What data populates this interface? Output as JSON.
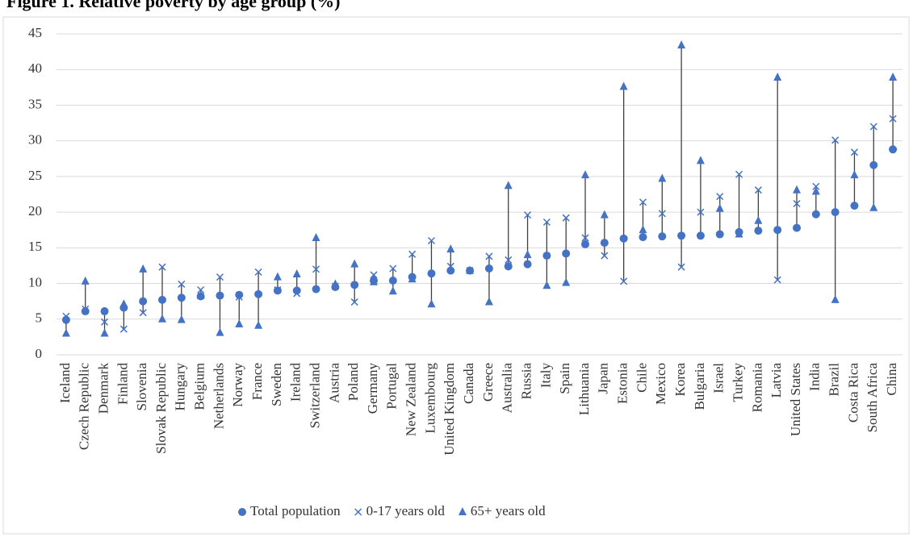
{
  "chart_data": {
    "type": "dot-range",
    "title": "Figure 1. Relative poverty by age group (%)",
    "categories": [
      "Iceland",
      "Czech Republic",
      "Denmark",
      "Finland",
      "Slovenia",
      "Slovak Republic",
      "Hungary",
      "Belgium",
      "Netherlands",
      "Norway",
      "France",
      "Sweden",
      "Ireland",
      "Switzerland",
      "Austria",
      "Poland",
      "Germany",
      "Portugal",
      "New Zealand",
      "Luxembourg",
      "United Kingdom",
      "Canada",
      "Greece",
      "Australia",
      "Russia",
      "Italy",
      "Spain",
      "Lithuania",
      "Japan",
      "Estonia",
      "Chile",
      "Mexico",
      "Korea",
      "Bulgaria",
      "Israel",
      "Turkey",
      "Romania",
      "Latvia",
      "United States",
      "India",
      "Brazil",
      "Costa Rica",
      "South Africa",
      "China"
    ],
    "series": [
      {
        "name": "Total population",
        "marker": "circle",
        "color": "#4472c4",
        "values": [
          4.9,
          6.1,
          6.1,
          6.6,
          7.5,
          7.7,
          8.0,
          8.2,
          8.3,
          8.4,
          8.5,
          9.0,
          9.0,
          9.2,
          9.5,
          9.8,
          10.4,
          10.4,
          10.9,
          11.4,
          11.8,
          11.8,
          12.1,
          12.4,
          12.7,
          13.9,
          14.2,
          15.5,
          15.7,
          16.3,
          16.5,
          16.6,
          16.7,
          16.7,
          16.9,
          17.2,
          17.4,
          17.5,
          17.8,
          19.7,
          20.0,
          20.9,
          26.6,
          28.8
        ]
      },
      {
        "name": "0-17 years old",
        "marker": "cross",
        "color": "#4472c4",
        "values": [
          5.4,
          6.4,
          4.6,
          3.6,
          5.9,
          12.3,
          9.9,
          9.1,
          10.9,
          8.1,
          11.6,
          9.1,
          8.6,
          12.0,
          9.6,
          7.4,
          11.2,
          12.1,
          14.1,
          16.0,
          12.4,
          11.8,
          13.8,
          13.3,
          19.6,
          18.6,
          19.2,
          16.4,
          13.9,
          10.3,
          21.4,
          19.8,
          12.3,
          20.0,
          22.2,
          25.3,
          23.1,
          10.5,
          21.2,
          23.6,
          30.1,
          28.4,
          32.0,
          33.1
        ]
      },
      {
        "name": "65+ years old",
        "marker": "triangle",
        "color": "#4472c4",
        "values": [
          3.0,
          10.3,
          3.0,
          7.1,
          12.0,
          5.0,
          4.9,
          8.3,
          3.1,
          4.3,
          4.1,
          10.9,
          11.3,
          16.4,
          9.9,
          12.7,
          10.2,
          8.9,
          10.6,
          7.1,
          14.8,
          11.8,
          7.4,
          23.7,
          14.0,
          9.7,
          10.1,
          25.2,
          19.6,
          37.6,
          17.5,
          24.7,
          43.4,
          27.2,
          20.5,
          16.9,
          18.8,
          38.9,
          23.1,
          22.9,
          7.7,
          25.2,
          20.6,
          38.9
        ]
      }
    ],
    "ylim": [
      0,
      45
    ],
    "yticks": [
      0,
      5,
      10,
      15,
      20,
      25,
      30,
      35,
      40,
      45
    ],
    "grid": true,
    "legend": "bottom"
  }
}
